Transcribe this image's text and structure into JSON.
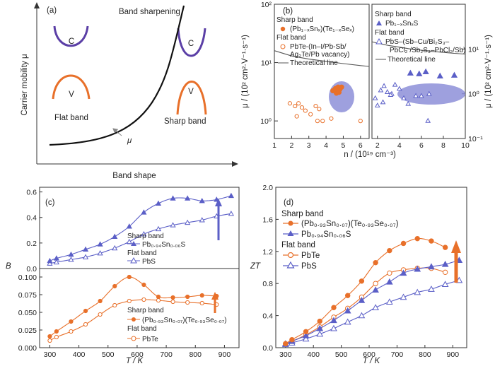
{
  "colors": {
    "orange": "#e8702a",
    "blue": "#5b5fc7",
    "purple": "#5b3fa6",
    "ellipse": "#8d8fd8",
    "line": "#555555",
    "arrow_a": "#888888"
  },
  "panel_a": {
    "letter": "(a)",
    "title": "Band sharpening",
    "ylabel": "Carrier mobility μ",
    "xlabel": "Band shape",
    "c_label_1": "C",
    "v_label_1": "V",
    "c_label_2": "C",
    "v_label_2": "V",
    "flat_label": "Flat band",
    "sharp_label": "Sharp band",
    "mu_label": "μ"
  },
  "panel_b": {
    "letter": "(b)",
    "ylabel_left": "μ / (10² cm²·V⁻¹·s⁻¹)",
    "ylabel_right": "μ / (10² cm²·V⁻¹·s⁻¹)",
    "xlabel": "n / (10¹⁹ cm⁻³)",
    "left": {
      "legend_sharp_title": "Sharp band",
      "legend_sharp_item": "(Pb₁₋ₓSnₓ)(Te₁₋ₓSeₓ)",
      "legend_flat_title": "Flat band",
      "legend_flat_item_1": "PbTe-(In–I/Pb-Sb/",
      "legend_flat_item_2": "Ag₂Te/Pb vacancy)",
      "legend_line": "Theoretical line",
      "yticks": [
        "10⁰",
        "10¹",
        "10²"
      ],
      "xticks": [
        "1",
        "2",
        "3",
        "4",
        "5",
        "6"
      ]
    },
    "right": {
      "legend_sharp_title": "Sharp band",
      "legend_sharp_item": "Pb₁₋ₓSnₓS",
      "legend_flat_title": "Flat band",
      "legend_flat_item_1": "PbS–(Sb–Cu/Bi₂S₃–",
      "legend_flat_item_2": "PbCl₂ /Sb₂S₃–PbCl₂/Sb)",
      "legend_line": "Theoretical line",
      "yticks": [
        "10⁻¹",
        "10⁰",
        "10¹"
      ],
      "xticks": [
        "2",
        "4",
        "6",
        "8",
        "10"
      ]
    }
  },
  "panel_c": {
    "letter": "(c)",
    "ylabel": "B",
    "xlabel": "T / K",
    "top_legend_sharp": "Sharp band",
    "top_legend_sharp_item": "Pb₀.₉₄Sn₀.₀₆S",
    "top_legend_flat": "Flat band",
    "top_legend_flat_item": "PbS",
    "bottom_legend_sharp": "Sharp band",
    "bottom_legend_sharp_item": "(Pb₀.₉₃Sn₀.₀₇)(Te₀.₉₃Se₀.₀₇)",
    "bottom_legend_flat": "Flat band",
    "bottom_legend_flat_item": "PbTe",
    "top_yticks": [
      "0.0",
      "0.2",
      "0.4",
      "0.6"
    ],
    "bottom_yticks": [
      "0.000",
      "0.025",
      "0.050",
      "0.075",
      "0.100"
    ],
    "xticks": [
      "300",
      "400",
      "500",
      "600",
      "700",
      "800",
      "900"
    ]
  },
  "panel_d": {
    "letter": "(d)",
    "ylabel": "ZT",
    "xlabel": "T / K",
    "legend_sharp": "Sharp band",
    "legend_sharp_1": "(Pb₀.₉₃Sn₀.₀₇)(Te₀.₉₃Se₀.₀₇)",
    "legend_sharp_2": "Pb₀.₉₄Sn₀.₀₆S",
    "legend_flat": "Flat band",
    "legend_flat_1": "PbTe",
    "legend_flat_2": "PbS",
    "yticks": [
      "0.0",
      "0.4",
      "0.8",
      "1.2",
      "1.6",
      "2.0"
    ],
    "xticks": [
      "300",
      "400",
      "500",
      "600",
      "700",
      "800",
      "900"
    ]
  },
  "chart_data": [
    {
      "panel": "a",
      "type": "line",
      "title": "Band sharpening",
      "xlabel": "Band shape",
      "ylabel": "Carrier mobility μ",
      "note": "schematic curve, no numeric scale"
    },
    {
      "panel": "b-left",
      "type": "scatter",
      "xlabel": "n / (10¹⁹ cm⁻³)",
      "ylabel": "μ / (10² cm²·V⁻¹·s⁻¹)",
      "xlim": [
        1,
        6.5
      ],
      "ylim": [
        0.5,
        100
      ],
      "yscale": "log",
      "series": [
        {
          "name": "(Pb₁₋ₓSnₓ)(Te₁₋ₓSeₓ)",
          "x": [
            4.4,
            4.55,
            4.6,
            4.7,
            4.8,
            4.9,
            4.5,
            4.75
          ],
          "y": [
            3.3,
            3.6,
            3.0,
            3.8,
            3.5,
            3.8,
            3.4,
            3.1
          ]
        },
        {
          "name": "PbTe-(In–I/Pb-Sb/Ag₂Te/Pb vacancy)",
          "x": [
            1.9,
            2.2,
            2.4,
            2.6,
            2.8,
            3.1,
            3.4,
            3.6,
            3.5,
            3.8,
            4.3,
            2.3,
            6.0
          ],
          "y": [
            2.0,
            1.8,
            2.0,
            1.7,
            1.5,
            1.3,
            1.8,
            1.6,
            1.0,
            1.0,
            1.1,
            1.2,
            1.0
          ]
        },
        {
          "name": "Theoretical line",
          "x": [
            1,
            2,
            3,
            4,
            5,
            6,
            6.5
          ],
          "y": [
            16,
            13,
            11.5,
            10.5,
            9.6,
            8.9,
            8.6
          ]
        }
      ]
    },
    {
      "panel": "b-right",
      "type": "scatter",
      "xlabel": "n / (10¹⁹ cm⁻³)",
      "ylabel": "μ / (10² cm²·V⁻¹·s⁻¹)",
      "xlim": [
        1.5,
        10
      ],
      "ylim": [
        0.1,
        100
      ],
      "yscale": "log",
      "series": [
        {
          "name": "Pb₁₋ₓSnₓS",
          "x": [
            5,
            5.8,
            6.4,
            7.7,
            9
          ],
          "y": [
            2.9,
            2.8,
            3.1,
            2.5,
            2.6
          ]
        },
        {
          "name": "PbS–(Sb–Cu/Bi₂S₃–PbCl₂/Sb₂S₃–PbCl₂/Sb)",
          "x": [
            1.8,
            2.3,
            2.6,
            2.9,
            3.3,
            3.6,
            2.5,
            3.2,
            4.0,
            4.4,
            5.5,
            6.0,
            6.7,
            6.6,
            2.0,
            4.8
          ],
          "y": [
            0.8,
            1.2,
            1.5,
            1.1,
            1.0,
            1.6,
            0.65,
            0.95,
            1.3,
            0.8,
            0.9,
            0.9,
            1.0,
            0.25,
            0.55,
            0.6
          ]
        },
        {
          "name": "Theoretical line",
          "x": [
            1.5,
            2,
            3,
            4,
            5,
            6,
            7,
            8,
            9,
            10
          ],
          "y": [
            14.5,
            13.5,
            12,
            11,
            10,
            9.4,
            8.8,
            8.4,
            8.0,
            7.7
          ]
        }
      ]
    },
    {
      "panel": "c-top",
      "type": "line",
      "xlabel": "T / K",
      "ylabel": "B",
      "xlim": [
        265,
        950
      ],
      "ylim": [
        0,
        0.62
      ],
      "series": [
        {
          "name": "Pb₀.₉₄Sn₀.₀₆S",
          "x": [
            300,
            323,
            373,
            423,
            473,
            523,
            573,
            623,
            673,
            723,
            773,
            823,
            873,
            923
          ],
          "y": [
            0.06,
            0.08,
            0.11,
            0.15,
            0.19,
            0.25,
            0.33,
            0.44,
            0.51,
            0.55,
            0.55,
            0.53,
            0.54,
            0.57
          ]
        },
        {
          "name": "PbS",
          "x": [
            300,
            323,
            373,
            423,
            473,
            523,
            573,
            623,
            673,
            723,
            773,
            823,
            873,
            923
          ],
          "y": [
            0.04,
            0.05,
            0.07,
            0.09,
            0.12,
            0.16,
            0.21,
            0.27,
            0.31,
            0.34,
            0.36,
            0.38,
            0.41,
            0.43
          ]
        }
      ]
    },
    {
      "panel": "c-bottom",
      "type": "line",
      "xlabel": "T / K",
      "ylabel": "B",
      "xlim": [
        265,
        950
      ],
      "ylim": [
        0,
        0.11
      ],
      "series": [
        {
          "name": "(Pb₀.₉₃Sn₀.₀₇)(Te₀.₉₃Se₀.₀₇)",
          "x": [
            300,
            323,
            373,
            423,
            473,
            523,
            573,
            623,
            673,
            723,
            773,
            823,
            873
          ],
          "y": [
            0.016,
            0.023,
            0.037,
            0.052,
            0.066,
            0.087,
            0.1,
            0.089,
            0.072,
            0.071,
            0.072,
            0.074,
            0.073
          ]
        },
        {
          "name": "PbTe",
          "x": [
            300,
            323,
            373,
            423,
            473,
            523,
            573,
            623,
            673,
            723,
            773,
            823,
            873
          ],
          "y": [
            0.01,
            0.015,
            0.023,
            0.033,
            0.047,
            0.06,
            0.066,
            0.068,
            0.067,
            0.065,
            0.064,
            0.063,
            0.061
          ]
        }
      ]
    },
    {
      "panel": "d",
      "type": "line",
      "xlabel": "T / K",
      "ylabel": "ZT",
      "xlim": [
        265,
        950
      ],
      "ylim": [
        0,
        2.0
      ],
      "series": [
        {
          "name": "(Pb₀.₉₃Sn₀.₀₇)(Te₀.₉₃Se₀.₀₇)",
          "x": [
            300,
            323,
            373,
            423,
            473,
            523,
            573,
            623,
            673,
            723,
            773,
            823,
            873
          ],
          "y": [
            0.05,
            0.1,
            0.2,
            0.33,
            0.5,
            0.65,
            0.83,
            1.06,
            1.21,
            1.3,
            1.36,
            1.33,
            1.25
          ]
        },
        {
          "name": "Pb₀.₉₄Sn₀.₀₆S",
          "x": [
            300,
            323,
            373,
            423,
            473,
            523,
            573,
            623,
            673,
            723,
            773,
            823,
            873,
            923
          ],
          "y": [
            0.05,
            0.08,
            0.15,
            0.24,
            0.34,
            0.46,
            0.59,
            0.72,
            0.82,
            0.93,
            0.98,
            1.01,
            1.04,
            1.09
          ]
        },
        {
          "name": "PbTe",
          "x": [
            300,
            323,
            373,
            423,
            473,
            523,
            573,
            623,
            673,
            723,
            773,
            823,
            873
          ],
          "y": [
            0.05,
            0.08,
            0.16,
            0.26,
            0.38,
            0.49,
            0.63,
            0.8,
            0.93,
            0.97,
            0.99,
            0.99,
            0.94
          ]
        },
        {
          "name": "PbS",
          "x": [
            300,
            323,
            373,
            423,
            473,
            523,
            573,
            623,
            673,
            723,
            773,
            823,
            873,
            923
          ],
          "y": [
            0.04,
            0.06,
            0.11,
            0.17,
            0.24,
            0.32,
            0.4,
            0.5,
            0.57,
            0.63,
            0.69,
            0.73,
            0.79,
            0.84
          ]
        }
      ]
    }
  ]
}
